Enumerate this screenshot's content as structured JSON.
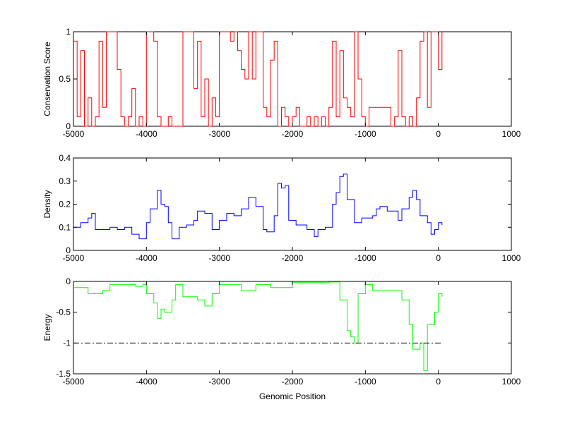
{
  "chart_data": [
    {
      "type": "line",
      "ylabel": "Conservation Score",
      "xlabel": "",
      "xlim": [
        -5000,
        1000
      ],
      "ylim": [
        0,
        1
      ],
      "xticks": [
        -5000,
        -4000,
        -3000,
        -2000,
        -1000,
        0,
        1000
      ],
      "yticks": [
        0,
        0.5,
        1
      ],
      "color": "#ff0000",
      "series": [
        {
          "name": "conservation",
          "x_start": -5000,
          "x_step": 50,
          "values": [
            0.9,
            0.1,
            0.8,
            0.0,
            0.3,
            0.0,
            0.1,
            0.9,
            0.2,
            1.0,
            1.0,
            1.0,
            0.6,
            0.1,
            0.0,
            0.1,
            0.4,
            0.0,
            0.1,
            0.0,
            1.0,
            1.0,
            0.9,
            0.1,
            0.0,
            0.0,
            0.1,
            0.0,
            0.0,
            0.0,
            1.0,
            1.0,
            1.0,
            0.4,
            0.9,
            0.1,
            0.5,
            0.0,
            0.3,
            0.1,
            1.0,
            1.0,
            1.0,
            0.9,
            1.0,
            0.8,
            0.6,
            0.5,
            1.0,
            0.5,
            1.0,
            1.0,
            0.2,
            0.1,
            0.7,
            0.9,
            0.0,
            0.2,
            0.1,
            0.0,
            0.1,
            0.2,
            0.0,
            0.0,
            0.1,
            0.0,
            0.1,
            0.0,
            0.1,
            0.0,
            0.2,
            0.9,
            0.1,
            0.8,
            0.3,
            0.2,
            0.1,
            1.0,
            0.5,
            0.1,
            0.0,
            0.2,
            0.2,
            0.2,
            0.2,
            0.2,
            0.2,
            0.0,
            0.1,
            0.8,
            0.1,
            0.0,
            0.1,
            0.0,
            0.3,
            0.9,
            1.0,
            0.2,
            1.0,
            1.0,
            0.6,
            1.0
          ]
        }
      ]
    },
    {
      "type": "line",
      "ylabel": "Density",
      "xlabel": "",
      "xlim": [
        -5000,
        1000
      ],
      "ylim": [
        0,
        0.4
      ],
      "xticks": [
        -5000,
        -4000,
        -3000,
        -2000,
        -1000,
        0,
        1000
      ],
      "yticks": [
        0,
        0.1,
        0.2,
        0.3,
        0.4
      ],
      "color": "#0000ff",
      "series": [
        {
          "name": "density",
          "x": [
            -5000,
            -4900,
            -4800,
            -4750,
            -4700,
            -4600,
            -4500,
            -4400,
            -4300,
            -4200,
            -4100,
            -4000,
            -3950,
            -3850,
            -3800,
            -3750,
            -3700,
            -3650,
            -3600,
            -3550,
            -3450,
            -3350,
            -3300,
            -3200,
            -3100,
            -3000,
            -2900,
            -2800,
            -2700,
            -2600,
            -2500,
            -2400,
            -2350,
            -2250,
            -2200,
            -2150,
            -2100,
            -2050,
            -1950,
            -1900,
            -1800,
            -1700,
            -1650,
            -1550,
            -1450,
            -1400,
            -1350,
            -1300,
            -1250,
            -1150,
            -1050,
            -900,
            -850,
            -800,
            -700,
            -600,
            -550,
            -500,
            -400,
            -350,
            -300,
            -250,
            -150,
            -100,
            -50,
            0,
            50
          ],
          "values": [
            0.1,
            0.12,
            0.14,
            0.16,
            0.09,
            0.09,
            0.1,
            0.09,
            0.1,
            0.07,
            0.05,
            0.12,
            0.18,
            0.26,
            0.2,
            0.19,
            0.12,
            0.05,
            0.05,
            0.1,
            0.11,
            0.13,
            0.17,
            0.16,
            0.09,
            0.13,
            0.16,
            0.15,
            0.18,
            0.23,
            0.19,
            0.09,
            0.08,
            0.15,
            0.29,
            0.27,
            0.28,
            0.13,
            0.11,
            0.11,
            0.09,
            0.06,
            0.09,
            0.1,
            0.2,
            0.25,
            0.32,
            0.33,
            0.22,
            0.12,
            0.14,
            0.15,
            0.18,
            0.19,
            0.17,
            0.17,
            0.13,
            0.18,
            0.23,
            0.26,
            0.22,
            0.15,
            0.12,
            0.07,
            0.09,
            0.12,
            0.11
          ]
        }
      ]
    },
    {
      "type": "line",
      "ylabel": "Energy",
      "xlabel": "Genomic Position",
      "xlim": [
        -5000,
        1000
      ],
      "ylim": [
        -1.5,
        0
      ],
      "xticks": [
        -5000,
        -4000,
        -3000,
        -2000,
        -1000,
        0,
        1000
      ],
      "yticks": [
        -1.5,
        -1,
        -0.5,
        0
      ],
      "color": "#00ff00",
      "threshold": {
        "y": -1,
        "x_range": [
          -5000,
          50
        ],
        "style": "dash-dot",
        "color": "#000000"
      },
      "series": [
        {
          "name": "energy",
          "x": [
            -5000,
            -4800,
            -4600,
            -4500,
            -4300,
            -4150,
            -4050,
            -4000,
            -3900,
            -3850,
            -3800,
            -3750,
            -3650,
            -3600,
            -3500,
            -3300,
            -3200,
            -3100,
            -3000,
            -2800,
            -2700,
            -2500,
            -2300,
            -2000,
            -1500,
            -1350,
            -1250,
            -1200,
            -1150,
            -1100,
            -1000,
            -900,
            -700,
            -500,
            -400,
            -350,
            -250,
            -200,
            -150,
            -50,
            0,
            50
          ],
          "values": [
            -0.1,
            -0.2,
            -0.15,
            -0.05,
            -0.05,
            -0.08,
            -0.05,
            -0.2,
            -0.35,
            -0.6,
            -0.45,
            -0.5,
            -0.3,
            -0.05,
            -0.25,
            -0.3,
            -0.4,
            -0.2,
            -0.05,
            -0.05,
            -0.15,
            -0.05,
            -0.1,
            -0.02,
            -0.01,
            -0.3,
            -0.8,
            -0.9,
            -1.0,
            -0.2,
            -0.05,
            -0.15,
            -0.15,
            -0.3,
            -0.7,
            -1.1,
            -1.0,
            -1.45,
            -0.7,
            -0.5,
            -0.2,
            -0.25
          ]
        }
      ]
    }
  ]
}
